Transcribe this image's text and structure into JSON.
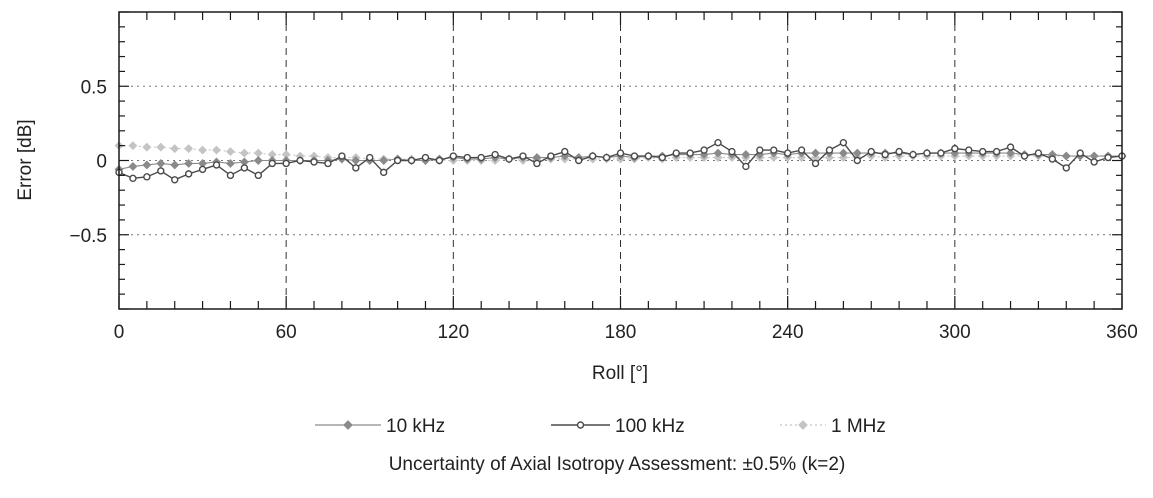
{
  "chart_data": {
    "type": "line",
    "xlabel": "Roll [°]",
    "ylabel": "Error [dB]",
    "xlim": [
      0,
      360
    ],
    "ylim": [
      -1.0,
      1.0
    ],
    "x_ticks": [
      0,
      60,
      120,
      180,
      240,
      300,
      360
    ],
    "x_tick_labels": [
      "0",
      "60",
      "120",
      "180",
      "240",
      "300",
      "360"
    ],
    "y_ticks": [
      0.5,
      0,
      -0.5
    ],
    "y_tick_labels": [
      "0.5",
      "0",
      "−0.5"
    ],
    "grid": true,
    "legend_position": "bottom",
    "note": "Uncertainty of Axial Isotropy Assessment: ±0.5% (k=2)",
    "x": [
      0,
      5,
      10,
      15,
      20,
      25,
      30,
      35,
      40,
      45,
      50,
      55,
      60,
      65,
      70,
      75,
      80,
      85,
      90,
      95,
      100,
      105,
      110,
      115,
      120,
      125,
      130,
      135,
      140,
      145,
      150,
      155,
      160,
      165,
      170,
      175,
      180,
      185,
      190,
      195,
      200,
      205,
      210,
      215,
      220,
      225,
      230,
      235,
      240,
      245,
      250,
      255,
      260,
      265,
      270,
      275,
      280,
      285,
      290,
      295,
      300,
      305,
      310,
      315,
      320,
      325,
      330,
      335,
      340,
      345,
      350,
      355,
      360
    ],
    "series": [
      {
        "name": "10 kHz",
        "color": "#8a8a8a",
        "marker": "diamond",
        "values": [
          -0.06,
          -0.04,
          -0.03,
          -0.02,
          -0.03,
          -0.02,
          -0.02,
          -0.01,
          -0.02,
          -0.01,
          0.0,
          0.0,
          0.0,
          0.0,
          0.0,
          0.0,
          0.01,
          0.0,
          0.0,
          0.0,
          0.01,
          0.0,
          0.0,
          0.01,
          0.02,
          0.01,
          0.01,
          0.02,
          0.01,
          0.02,
          0.02,
          0.02,
          0.03,
          0.02,
          0.03,
          0.02,
          0.03,
          0.02,
          0.03,
          0.03,
          0.04,
          0.04,
          0.04,
          0.05,
          0.04,
          0.04,
          0.04,
          0.05,
          0.04,
          0.05,
          0.05,
          0.05,
          0.05,
          0.05,
          0.05,
          0.05,
          0.05,
          0.04,
          0.05,
          0.05,
          0.05,
          0.05,
          0.05,
          0.05,
          0.05,
          0.04,
          0.04,
          0.04,
          0.03,
          0.03,
          0.03,
          0.03,
          0.03
        ]
      },
      {
        "name": "100 kHz",
        "color": "#4a4a4a",
        "marker": "circle",
        "values": [
          -0.08,
          -0.12,
          -0.11,
          -0.07,
          -0.13,
          -0.09,
          -0.06,
          -0.03,
          -0.1,
          -0.05,
          -0.1,
          -0.02,
          -0.02,
          0.0,
          -0.01,
          -0.02,
          0.03,
          -0.05,
          0.02,
          -0.08,
          0.0,
          0.0,
          0.02,
          0.0,
          0.03,
          0.02,
          0.02,
          0.04,
          0.01,
          0.03,
          -0.02,
          0.03,
          0.06,
          0.0,
          0.03,
          0.02,
          0.05,
          0.03,
          0.03,
          0.02,
          0.05,
          0.05,
          0.07,
          0.12,
          0.06,
          -0.04,
          0.07,
          0.07,
          0.05,
          0.07,
          -0.02,
          0.07,
          0.12,
          0.0,
          0.06,
          0.04,
          0.06,
          0.04,
          0.05,
          0.05,
          0.08,
          0.07,
          0.06,
          0.06,
          0.09,
          0.03,
          0.05,
          0.01,
          -0.05,
          0.05,
          -0.01,
          0.02,
          0.03
        ]
      },
      {
        "name": "1 MHz",
        "color": "#c4c4c4",
        "marker": "diamond",
        "values": [
          0.1,
          0.1,
          0.09,
          0.09,
          0.08,
          0.08,
          0.07,
          0.07,
          0.06,
          0.05,
          0.05,
          0.04,
          0.04,
          0.03,
          0.03,
          0.02,
          0.02,
          0.02,
          0.01,
          0.01,
          0.01,
          0.01,
          0.0,
          0.0,
          0.0,
          0.0,
          0.0,
          0.0,
          0.01,
          0.0,
          0.01,
          0.01,
          0.01,
          0.01,
          0.01,
          0.01,
          0.01,
          0.01,
          0.02,
          0.01,
          0.02,
          0.02,
          0.02,
          0.02,
          0.02,
          0.02,
          0.02,
          0.02,
          0.02,
          0.02,
          0.02,
          0.02,
          0.02,
          0.02,
          0.03,
          0.02,
          0.03,
          0.03,
          0.03,
          0.03,
          0.03,
          0.03,
          0.03,
          0.03,
          0.03,
          0.03,
          0.03,
          0.03,
          0.03,
          0.03,
          0.03,
          0.03,
          0.03
        ]
      }
    ]
  }
}
